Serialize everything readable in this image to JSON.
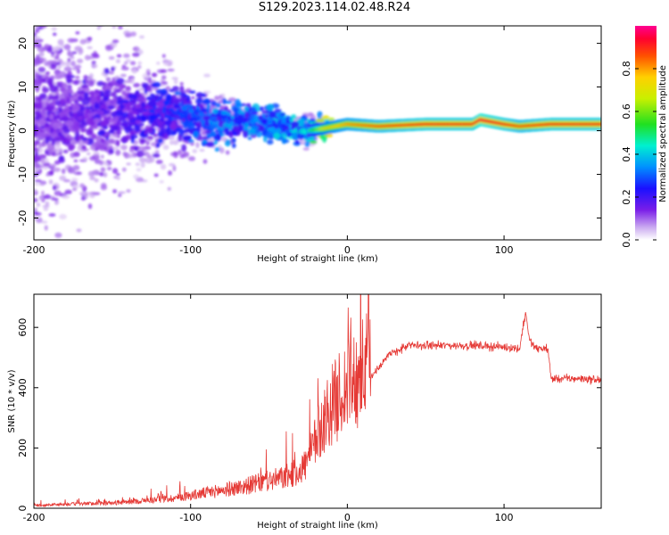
{
  "title": "S129.2023.114.02.48.R24",
  "colors": {
    "snr_line": "#e53935",
    "frame": "#000000"
  },
  "chart_data": [
    {
      "type": "heatmap",
      "xlabel": "Height of straight line (km)",
      "ylabel": "Frequency (Hz)",
      "xlim": [
        -200,
        162
      ],
      "ylim": [
        -25,
        24
      ],
      "x_ticks": [
        -200,
        -100,
        0,
        100
      ],
      "y_ticks": [
        -20,
        -10,
        0,
        10,
        20
      ],
      "colorbar": {
        "label": "Normalized spectral amplitude",
        "range": [
          0,
          1
        ],
        "ticks": [
          0.0,
          0.2,
          0.4,
          0.6,
          0.8
        ],
        "tick_labels": [
          "0.0",
          "0.2",
          "0.4",
          "0.6",
          "0.8"
        ],
        "colormap": "rainbow"
      },
      "ridge": {
        "x": [
          -200,
          -150,
          -120,
          -100,
          -80,
          -60,
          -40,
          -25,
          -15,
          0,
          20,
          50,
          80,
          85,
          100,
          110,
          130,
          162
        ],
        "frequency_hz": [
          3,
          4,
          4,
          3,
          2,
          2,
          1,
          0,
          0.5,
          1.5,
          1,
          1.5,
          1.5,
          2.5,
          1.5,
          1,
          1.5,
          1.5
        ],
        "amplitude": [
          0.15,
          0.2,
          0.25,
          0.3,
          0.35,
          0.35,
          0.4,
          0.45,
          0.7,
          0.8,
          0.85,
          0.9,
          0.9,
          0.95,
          0.9,
          0.85,
          0.9,
          0.9
        ]
      }
    },
    {
      "type": "line",
      "xlabel": "Height of straight line (km)",
      "ylabel": "SNR (10 * v/v)",
      "xlim": [
        -200,
        162
      ],
      "ylim": [
        0,
        710
      ],
      "x_ticks": [
        -200,
        -100,
        0,
        100
      ],
      "y_ticks": [
        0,
        200,
        400,
        600
      ],
      "envelope": {
        "x": [
          -200,
          -180,
          -150,
          -130,
          -110,
          -90,
          -70,
          -50,
          -40,
          -30,
          -25,
          -20,
          -15,
          -10,
          -5,
          0,
          10,
          20,
          25,
          30,
          40,
          60,
          80,
          100,
          110,
          112,
          114,
          116,
          120,
          128,
          130,
          140,
          150,
          162
        ],
        "snr": [
          8,
          12,
          15,
          22,
          30,
          45,
          60,
          80,
          90,
          110,
          140,
          200,
          260,
          300,
          330,
          360,
          400,
          470,
          500,
          520,
          540,
          540,
          540,
          535,
          530,
          600,
          650,
          560,
          530,
          530,
          430,
          430,
          430,
          425
        ]
      }
    }
  ]
}
